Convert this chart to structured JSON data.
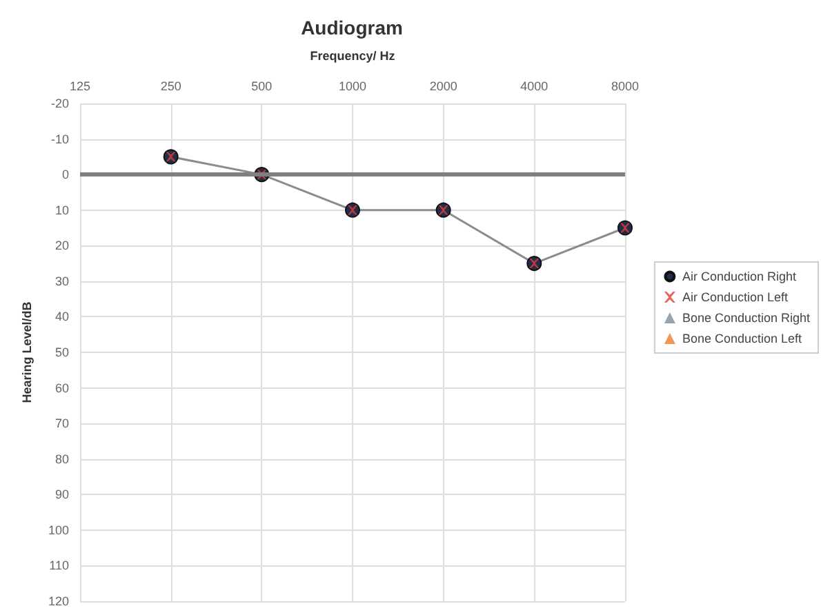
{
  "chart_data": {
    "type": "line",
    "title": "Audiogram",
    "xlabel": "Frequency/ Hz",
    "ylabel": "Hearing Level/dB",
    "categories": [
      "125",
      "250",
      "500",
      "1000",
      "2000",
      "4000",
      "8000"
    ],
    "series": [
      {
        "name": "Air Conduction Right",
        "marker": "circle",
        "color": "#1f2d4e",
        "values": [
          null,
          -5,
          0,
          10,
          10,
          25,
          15
        ]
      },
      {
        "name": "Air Conduction Left",
        "type": "scatter",
        "marker": "cross",
        "color": "#e03c31",
        "values": [
          null,
          -5,
          0,
          10,
          10,
          25,
          15
        ]
      },
      {
        "name": "Bone Conduction Right",
        "type": "scatter",
        "marker": "triangle",
        "color": "#7f8c99",
        "values": [
          null,
          null,
          null,
          null,
          null,
          null,
          null
        ]
      },
      {
        "name": "Bone Conduction Left",
        "type": "scatter",
        "marker": "triangle",
        "color": "#ed7d31",
        "values": [
          null,
          null,
          null,
          null,
          null,
          null,
          null
        ]
      }
    ],
    "ylim": [
      120,
      -20
    ],
    "yticks": [
      -20,
      -10,
      0,
      10,
      20,
      30,
      40,
      50,
      60,
      70,
      80,
      90,
      100,
      110,
      120
    ],
    "ref_lines": [
      {
        "axis": "y",
        "value": 0,
        "color": "#808080"
      }
    ],
    "grid": true,
    "legend": "right"
  }
}
